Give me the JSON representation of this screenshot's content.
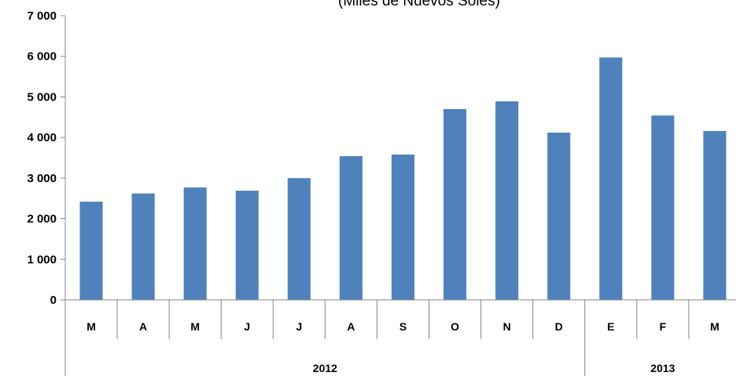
{
  "chart_data": {
    "type": "bar",
    "subtitle": "(Miles de Nuevos Soles)",
    "categories": [
      "M",
      "A",
      "M",
      "J",
      "J",
      "A",
      "S",
      "O",
      "N",
      "D",
      "E",
      "F",
      "M"
    ],
    "groups": [
      {
        "label": "2012",
        "count": 10
      },
      {
        "label": "2013",
        "count": 3
      }
    ],
    "series": [
      {
        "values": [
          2420,
          2620,
          2770,
          2690,
          3000,
          3540,
          3580,
          4700,
          4890,
          4120,
          5970,
          4540,
          4160
        ]
      }
    ],
    "yticks": [
      0,
      1000,
      2000,
      3000,
      4000,
      5000,
      6000,
      7000
    ],
    "ytick_labels": [
      "0",
      "1 000",
      "2 000",
      "3 000",
      "4 000",
      "5 000",
      "6 000",
      "7 000"
    ],
    "ylim": [
      0,
      7000
    ],
    "grid": false,
    "bar_color": "#4F81BD",
    "xlabel": "",
    "ylabel": ""
  }
}
